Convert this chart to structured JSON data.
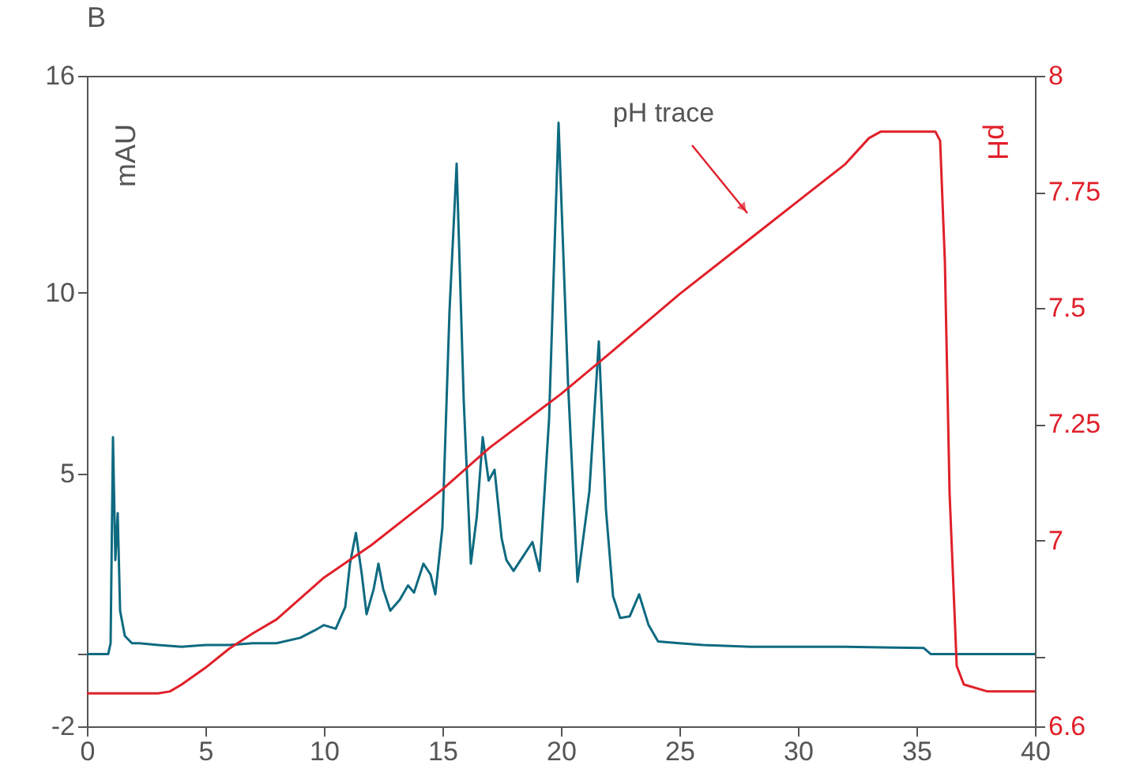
{
  "chart_data": {
    "type": "line",
    "title": "B",
    "ylabel": "mAU",
    "y2label": "pH",
    "series": [
      {
        "color": "#0e6a80",
        "x": [
          0,
          0.9,
          1.0,
          1.1,
          1.2,
          1.3,
          1.4,
          1.6,
          1.9,
          2.2,
          3,
          4,
          5,
          6,
          7,
          8,
          9,
          9.6,
          10,
          10.5,
          10.9,
          11.1,
          11.35,
          11.6,
          11.8,
          12.1,
          12.3,
          12.5,
          12.8,
          13.2,
          13.55,
          13.8,
          14.2,
          14.5,
          14.7,
          15.0,
          15.3,
          15.6,
          15.9,
          16.2,
          16.45,
          16.7,
          16.95,
          17.2,
          17.5,
          17.7,
          18.0,
          18.4,
          18.8,
          19.1,
          19.5,
          19.9,
          20.3,
          20.7,
          21.2,
          21.6,
          21.9,
          22.2,
          22.5,
          22.9,
          23.3,
          23.7,
          24.1,
          25,
          26,
          28,
          30,
          32,
          34,
          35.3,
          35.6,
          37,
          40
        ],
        "values": [
          0,
          0,
          0.3,
          6.0,
          2.6,
          3.9,
          1.2,
          0.5,
          0.3,
          0.3,
          0.25,
          0.2,
          0.25,
          0.25,
          0.3,
          0.3,
          0.45,
          0.65,
          0.8,
          0.7,
          1.3,
          2.5,
          3.35,
          2.2,
          1.1,
          1.8,
          2.5,
          1.8,
          1.2,
          1.5,
          1.9,
          1.7,
          2.5,
          2.2,
          1.65,
          3.5,
          9.5,
          13.57,
          7.0,
          2.5,
          3.8,
          6.0,
          4.8,
          5.1,
          3.2,
          2.6,
          2.3,
          2.7,
          3.1,
          2.3,
          6.5,
          14.7,
          7.5,
          2.0,
          4.5,
          8.65,
          4.0,
          1.6,
          1.0,
          1.04,
          1.65,
          0.8,
          0.35,
          0.3,
          0.25,
          0.2,
          0.2,
          0.2,
          0.18,
          0.17,
          0.0,
          0.0,
          0.0
        ]
      },
      {
        "color": "#e0202a",
        "axis": "y2",
        "x": [
          0,
          1,
          2,
          3,
          3.5,
          4,
          5,
          6,
          7,
          8,
          10,
          12,
          15,
          17,
          20,
          22,
          25,
          28,
          30,
          32,
          33,
          33.5,
          35.8,
          36.0,
          36.2,
          36.4,
          36.7,
          37,
          38,
          40
        ],
        "values": [
          6.671,
          6.671,
          6.671,
          6.671,
          6.675,
          6.69,
          6.726,
          6.767,
          6.8,
          6.83,
          6.92,
          6.99,
          7.11,
          7.2,
          7.315,
          7.4,
          7.53,
          7.65,
          7.73,
          7.81,
          7.866,
          7.88,
          7.88,
          7.86,
          7.6,
          7.1,
          6.73,
          6.69,
          6.675,
          6.675
        ]
      }
    ],
    "xlim": [
      0,
      40
    ],
    "xticks": [
      0,
      5,
      10,
      15,
      20,
      25,
      30,
      35,
      40
    ],
    "ylim": [
      -2,
      16
    ],
    "yticks": [
      -2,
      {
        "value": 0,
        "label": null
      },
      5,
      10,
      16
    ],
    "y2lim": [
      6.6,
      8
    ],
    "y2ticks": [
      6.6,
      {
        "value": 6.75,
        "label": null
      },
      7,
      7.25,
      7.5,
      7.75,
      8
    ],
    "annotations": [
      "pH trace"
    ],
    "grid": false,
    "marker": "none",
    "line_style": "solid"
  }
}
